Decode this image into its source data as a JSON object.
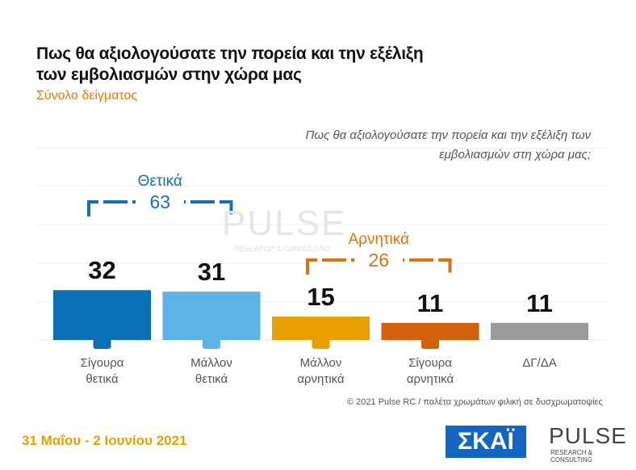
{
  "chart_data": {
    "type": "bar",
    "title": "Πως θα αξιολογούσατε την πορεία και την εξέλιξη\nτων εμβολιασμών στην χώρα μας",
    "subtitle": "Σύνολο δείγματος",
    "question": "Πως θα αξιολογούσατε την πορεία και την εξέλιξη των εμβολιασμών στη χώρα μας;",
    "categories": [
      "Σίγουρα\nθετικά",
      "Μάλλον\nθετικά",
      "Μάλλον\nαρνητικά",
      "Σίγουρα\nαρνητικά",
      "ΔΓ/ΔΑ"
    ],
    "values": [
      32,
      31,
      15,
      11,
      11
    ],
    "colors": [
      "#0b6fb6",
      "#5db3e8",
      "#e8a000",
      "#d4600c",
      "#9a9a9a"
    ],
    "groups": [
      {
        "label": "Θετικά",
        "total": 63,
        "color": "#1a6fae"
      },
      {
        "label": "Αρνητικά",
        "total": 26,
        "color": "#d9730d"
      }
    ]
  },
  "footer": {
    "copyright": "© 2021 Pulse RC  /  παλέτα χρωμάτων φιλική σε δυσχρωματοψίες",
    "date": "31 Μαΐου - 2 Ιουνίου 2021",
    "skai_logo": "ΣΚΑΪ",
    "pulse_logo": "PULSE",
    "pulse_tagline": "RESEARCH & CONSULTING"
  }
}
